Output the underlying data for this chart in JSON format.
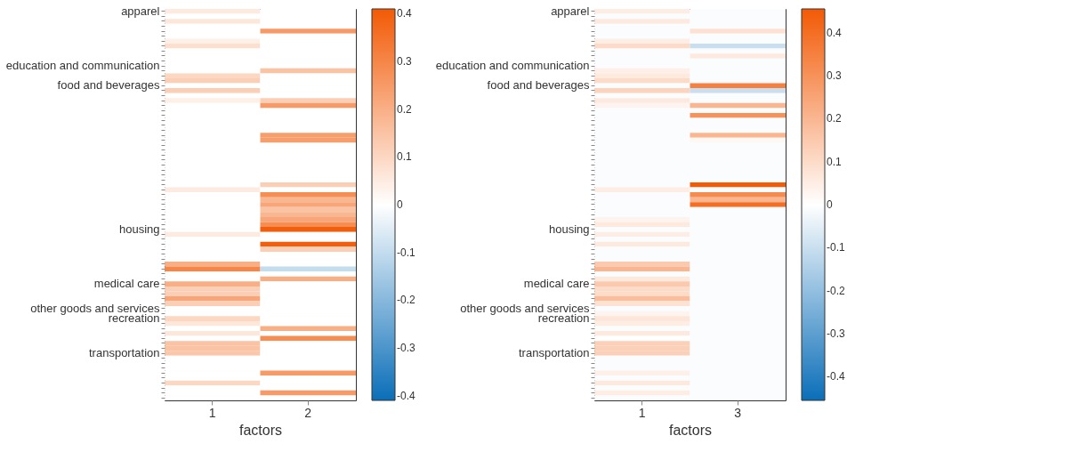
{
  "chart_data": [
    {
      "type": "heatmap",
      "xlabel": "factors",
      "categories": [
        "1",
        "2"
      ],
      "y_categories": [
        "apparel",
        null,
        null,
        null,
        null,
        null,
        null,
        null,
        null,
        null,
        null,
        "education and communication",
        null,
        null,
        null,
        "food and beverages",
        null,
        null,
        null,
        null,
        null,
        null,
        null,
        null,
        null,
        null,
        null,
        null,
        null,
        null,
        null,
        null,
        null,
        null,
        null,
        null,
        null,
        null,
        null,
        null,
        null,
        null,
        null,
        null,
        "housing",
        null,
        null,
        null,
        null,
        null,
        null,
        null,
        null,
        null,
        null,
        "medical care",
        null,
        null,
        null,
        null,
        "other goods and services",
        null,
        "recreation",
        null,
        null,
        null,
        null,
        null,
        null,
        "transportation",
        null,
        null,
        null,
        null,
        null,
        null,
        null,
        null,
        null
      ],
      "cells": [
        [
          0.05,
          0
        ],
        [
          0,
          0
        ],
        [
          0.06,
          0
        ],
        [
          0,
          0
        ],
        [
          0,
          0.25
        ],
        [
          0,
          0
        ],
        [
          0.04,
          0
        ],
        [
          0.08,
          0
        ],
        [
          0,
          0
        ],
        [
          0,
          0
        ],
        [
          0,
          0
        ],
        [
          0,
          0
        ],
        [
          0,
          0.15
        ],
        [
          0.1,
          0
        ],
        [
          0.12,
          0
        ],
        [
          0,
          0
        ],
        [
          0.12,
          0
        ],
        [
          0,
          0
        ],
        [
          0.04,
          0.12
        ],
        [
          0,
          0.25
        ],
        [
          0,
          0
        ],
        [
          0,
          0
        ],
        [
          0,
          0
        ],
        [
          0,
          0
        ],
        [
          0,
          0
        ],
        [
          0,
          0.24
        ],
        [
          0,
          0.24
        ],
        [
          0,
          0
        ],
        [
          0,
          0
        ],
        [
          0,
          0
        ],
        [
          0,
          0
        ],
        [
          0,
          0
        ],
        [
          0,
          0
        ],
        [
          0,
          0
        ],
        [
          0,
          0
        ],
        [
          0,
          0.12
        ],
        [
          0.05,
          0
        ],
        [
          0,
          0.28
        ],
        [
          0,
          0.18
        ],
        [
          0,
          0.22
        ],
        [
          0,
          0.15
        ],
        [
          0,
          0.18
        ],
        [
          0,
          0.22
        ],
        [
          0,
          0.28
        ],
        [
          0,
          0.4
        ],
        [
          0.05,
          0
        ],
        [
          0,
          0
        ],
        [
          0,
          0.4
        ],
        [
          0,
          0.12
        ],
        [
          0,
          0
        ],
        [
          0,
          0
        ],
        [
          0.2,
          0
        ],
        [
          0.3,
          -0.1
        ],
        [
          0,
          0
        ],
        [
          0,
          0.2
        ],
        [
          0.2,
          0
        ],
        [
          0.12,
          0
        ],
        [
          0.12,
          0
        ],
        [
          0.22,
          0
        ],
        [
          0.12,
          0
        ],
        [
          0,
          0
        ],
        [
          0,
          0
        ],
        [
          0.1,
          0
        ],
        [
          0.06,
          0
        ],
        [
          0,
          0.2
        ],
        [
          0.06,
          0
        ],
        [
          0,
          0.28
        ],
        [
          0.15,
          0
        ],
        [
          0.15,
          0
        ],
        [
          0.14,
          0
        ],
        [
          0,
          0
        ],
        [
          0,
          0
        ],
        [
          0,
          0
        ],
        [
          0,
          0.25
        ],
        [
          0,
          0
        ],
        [
          0.1,
          0
        ],
        [
          0,
          0
        ],
        [
          0,
          0.25
        ],
        [
          0,
          0
        ]
      ],
      "clim": [
        -0.41,
        0.41
      ],
      "cticks": [
        -0.4,
        -0.3,
        -0.2,
        -0.1,
        0,
        0.1,
        0.2,
        0.3,
        0.4
      ],
      "colors": [
        "#0a6eb8",
        "#ffffff",
        "#f25a05"
      ]
    },
    {
      "type": "heatmap",
      "xlabel": "factors",
      "categories": [
        "1",
        "3"
      ],
      "y_categories": [
        "apparel",
        null,
        null,
        null,
        null,
        null,
        null,
        null,
        null,
        null,
        null,
        "education and communication",
        null,
        null,
        null,
        "food and beverages",
        null,
        null,
        null,
        null,
        null,
        null,
        null,
        null,
        null,
        null,
        null,
        null,
        null,
        null,
        null,
        null,
        null,
        null,
        null,
        null,
        null,
        null,
        null,
        null,
        null,
        null,
        null,
        null,
        "housing",
        null,
        null,
        null,
        null,
        null,
        null,
        null,
        null,
        null,
        null,
        "medical care",
        null,
        null,
        null,
        null,
        "other goods and services",
        null,
        "recreation",
        null,
        null,
        null,
        null,
        null,
        null,
        "transportation",
        null,
        null,
        null,
        null,
        null,
        null,
        null,
        null,
        null
      ],
      "cells": [
        [
          0.05,
          -0.01
        ],
        [
          -0.01,
          -0.01
        ],
        [
          0.06,
          -0.01
        ],
        [
          -0.01,
          -0.01
        ],
        [
          -0.01,
          0.08
        ],
        [
          -0.01,
          -0.01
        ],
        [
          0.05,
          -0.01
        ],
        [
          0.1,
          -0.1
        ],
        [
          -0.01,
          -0.01
        ],
        [
          -0.01,
          0.06
        ],
        [
          -0.01,
          -0.01
        ],
        [
          -0.01,
          -0.01
        ],
        [
          0.04,
          -0.01
        ],
        [
          0.06,
          -0.01
        ],
        [
          0.1,
          -0.01
        ],
        [
          -0.01,
          0.35
        ],
        [
          0.12,
          -0.1
        ],
        [
          -0.01,
          -0.01
        ],
        [
          0.06,
          -0.01
        ],
        [
          0.03,
          0.2
        ],
        [
          -0.01,
          -0.01
        ],
        [
          -0.01,
          0.3
        ],
        [
          -0.01,
          -0.01
        ],
        [
          -0.01,
          -0.01
        ],
        [
          -0.01,
          -0.01
        ],
        [
          -0.01,
          0.2
        ],
        [
          -0.01,
          0.02
        ],
        [
          -0.01,
          -0.01
        ],
        [
          -0.01,
          -0.01
        ],
        [
          -0.01,
          -0.01
        ],
        [
          -0.01,
          -0.01
        ],
        [
          -0.01,
          -0.01
        ],
        [
          -0.01,
          -0.01
        ],
        [
          -0.01,
          -0.01
        ],
        [
          -0.01,
          -0.01
        ],
        [
          -0.01,
          0.45
        ],
        [
          0.05,
          -0.01
        ],
        [
          -0.01,
          0.32
        ],
        [
          -0.01,
          0.2
        ],
        [
          -0.01,
          0.4
        ],
        [
          -0.01,
          -0.01
        ],
        [
          -0.01,
          -0.01
        ],
        [
          0.03,
          -0.01
        ],
        [
          0.06,
          -0.01
        ],
        [
          -0.01,
          -0.01
        ],
        [
          0.05,
          -0.01
        ],
        [
          -0.01,
          -0.01
        ],
        [
          0.06,
          -0.01
        ],
        [
          -0.01,
          -0.01
        ],
        [
          -0.01,
          -0.01
        ],
        [
          -0.01,
          -0.01
        ],
        [
          0.15,
          -0.01
        ],
        [
          0.2,
          -0.01
        ],
        [
          -0.01,
          -0.01
        ],
        [
          0.06,
          -0.01
        ],
        [
          0.15,
          -0.01
        ],
        [
          0.1,
          -0.01
        ],
        [
          0.1,
          -0.01
        ],
        [
          0.18,
          -0.01
        ],
        [
          0.08,
          -0.01
        ],
        [
          -0.01,
          -0.01
        ],
        [
          0.03,
          -0.01
        ],
        [
          0.07,
          -0.01
        ],
        [
          0.05,
          -0.01
        ],
        [
          -0.01,
          -0.01
        ],
        [
          0.06,
          -0.01
        ],
        [
          0,
          -0.01
        ],
        [
          0.13,
          -0.01
        ],
        [
          0.13,
          -0.01
        ],
        [
          0.13,
          -0.01
        ],
        [
          -0.01,
          -0.01
        ],
        [
          -0.01,
          -0.01
        ],
        [
          -0.01,
          -0.01
        ],
        [
          0.04,
          -0.01
        ],
        [
          -0.01,
          -0.01
        ],
        [
          0.06,
          -0.01
        ],
        [
          -0.01,
          -0.01
        ],
        [
          0.05,
          -0.01
        ],
        [
          -0.01,
          -0.01
        ]
      ],
      "clim": [
        -0.455,
        0.455
      ],
      "cticks": [
        -0.4,
        -0.3,
        -0.2,
        -0.1,
        0,
        0.1,
        0.2,
        0.3,
        0.4
      ],
      "colors": [
        "#0a6eb8",
        "#ffffff",
        "#f25a05"
      ]
    }
  ]
}
